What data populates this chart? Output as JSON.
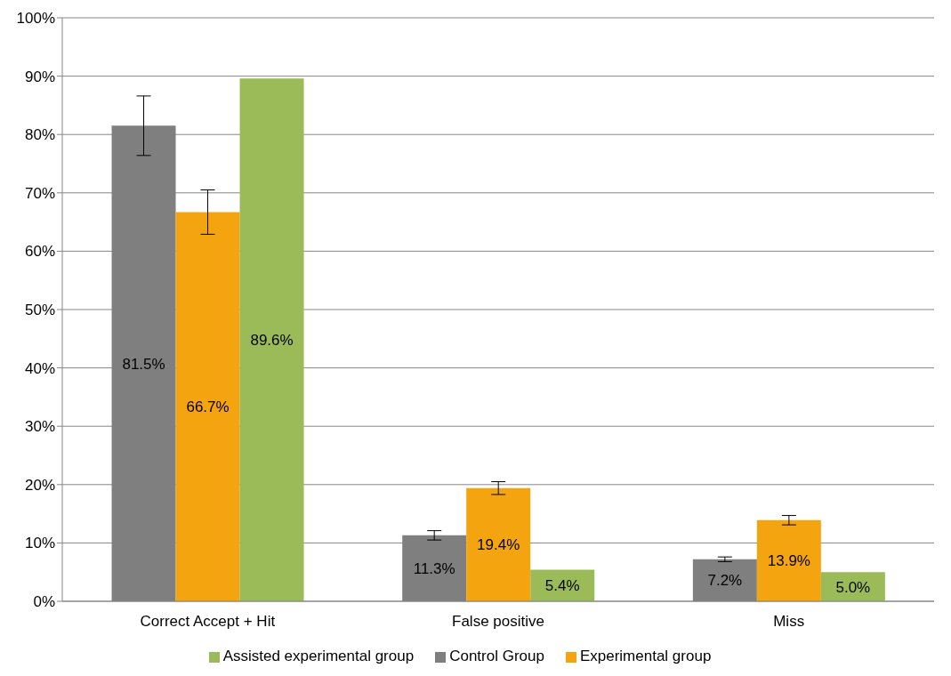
{
  "chart_data": {
    "type": "bar",
    "categories": [
      "Correct Accept + Hit",
      "False positive",
      "Miss"
    ],
    "series": [
      {
        "name": "Control Group",
        "color": "#7f7f7f",
        "values": [
          81.5,
          11.3,
          7.2
        ],
        "errors": [
          5.1,
          0.8,
          0.4
        ],
        "value_labels": [
          "81.5%",
          "11.3%",
          "7.2%"
        ]
      },
      {
        "name": "Experimental group",
        "color": "#f4a40f",
        "values": [
          66.7,
          19.4,
          13.9
        ],
        "errors": [
          3.8,
          1.1,
          0.8
        ],
        "value_labels": [
          "66.7%",
          "19.4%",
          "13.9%"
        ]
      },
      {
        "name": "Assisted experimental group",
        "color": "#9bbb59",
        "values": [
          89.6,
          5.4,
          5.0
        ],
        "value_labels": [
          "89.6%",
          "5.4%",
          "5.0%"
        ]
      }
    ],
    "ylim": [
      0,
      100
    ],
    "yticks": [
      {
        "value": 0,
        "label": "0%"
      },
      {
        "value": 10,
        "label": "10%"
      },
      {
        "value": 20,
        "label": "20%"
      },
      {
        "value": 30,
        "label": "30%"
      },
      {
        "value": 40,
        "label": "40%"
      },
      {
        "value": 50,
        "label": "50%"
      },
      {
        "value": 60,
        "label": "60%"
      },
      {
        "value": 70,
        "label": "70%"
      },
      {
        "value": 80,
        "label": "80%"
      },
      {
        "value": 90,
        "label": "90%"
      },
      {
        "value": 100,
        "label": "100%"
      }
    ],
    "grid": "y",
    "legend": "bottom"
  }
}
